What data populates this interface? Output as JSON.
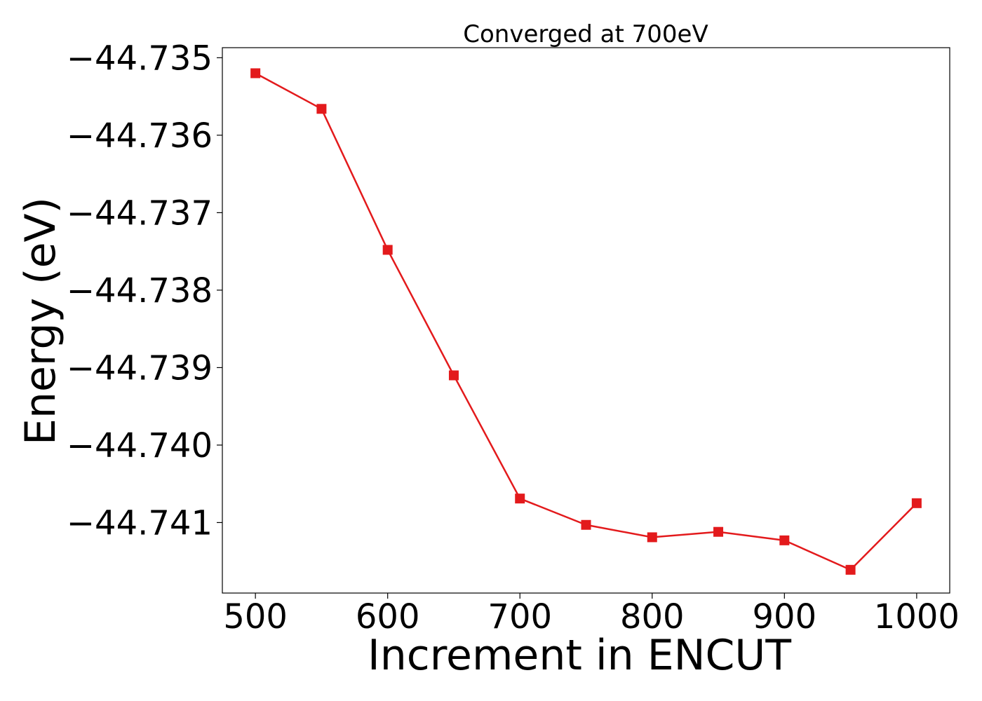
{
  "chart_data": {
    "type": "line",
    "title": "Converged at 700eV",
    "xlabel": "Increment in ENCUT",
    "ylabel": "Energy (eV)",
    "x": [
      500,
      550,
      600,
      650,
      700,
      750,
      800,
      850,
      900,
      950,
      1000
    ],
    "series": [
      {
        "values": [
          -44.7352,
          -44.73566,
          -44.73748,
          -44.7391,
          -44.74069,
          -44.74103,
          -44.74119,
          -44.74112,
          -44.74123,
          -44.74161,
          -44.74075
        ],
        "color": "#e31a1c",
        "marker": "square"
      }
    ],
    "xticks": [
      500,
      600,
      700,
      800,
      900,
      1000
    ],
    "xtick_labels": [
      "500",
      "600",
      "700",
      "800",
      "900",
      "1000"
    ],
    "yticks": [
      -44.735,
      -44.736,
      -44.737,
      -44.738,
      -44.739,
      -44.74,
      -44.741
    ],
    "ytick_labels": [
      "−44.735",
      "−44.736",
      "−44.737",
      "−44.738",
      "−44.739",
      "−44.740",
      "−44.741"
    ],
    "xlim": [
      475,
      1025
    ],
    "ylim": [
      -44.74191,
      -44.73487
    ],
    "grid": false,
    "legend": "none"
  }
}
